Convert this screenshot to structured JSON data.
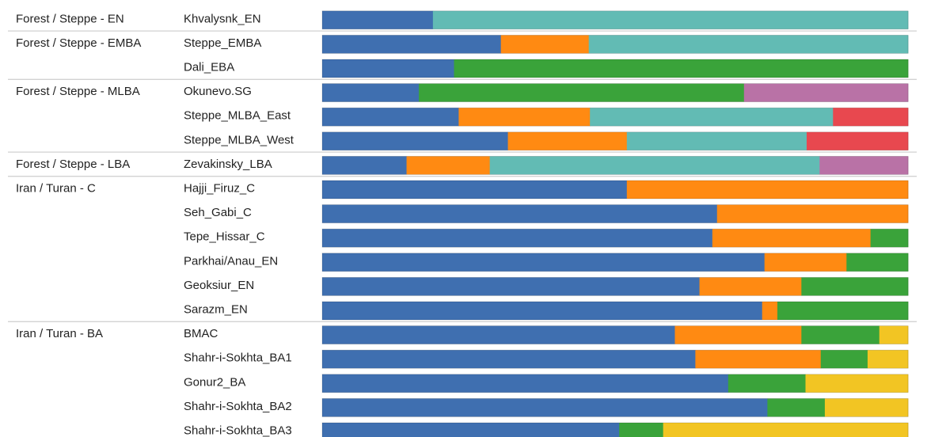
{
  "chart_data": {
    "type": "bar",
    "stacked": true,
    "orientation": "horizontal",
    "normalized": true,
    "xlim": [
      0,
      1
    ],
    "component_colors": [
      "#3f6fb0",
      "#ff8a12",
      "#3aa33a",
      "#f2c523",
      "#b972a6",
      "#e8484f",
      "#62bbb4"
    ],
    "groups": [
      {
        "label": "Forest / Steppe - EN",
        "rows": [
          {
            "name": "Khvalysnk_EN",
            "segments": [
              {
                "color": "#3f6fb0",
                "value": 0.189
              },
              {
                "color": "#62bbb4",
                "value": 0.811
              }
            ]
          }
        ]
      },
      {
        "label": "Forest / Steppe - EMBA",
        "rows": [
          {
            "name": "Steppe_EMBA",
            "segments": [
              {
                "color": "#3f6fb0",
                "value": 0.305
              },
              {
                "color": "#ff8a12",
                "value": 0.15
              },
              {
                "color": "#62bbb4",
                "value": 0.545
              }
            ]
          },
          {
            "name": "Dali_EBA",
            "segments": [
              {
                "color": "#3f6fb0",
                "value": 0.225
              },
              {
                "color": "#3aa33a",
                "value": 0.775
              }
            ]
          }
        ]
      },
      {
        "label": "Forest / Steppe - MLBA",
        "rows": [
          {
            "name": "Okunevo.SG",
            "segments": [
              {
                "color": "#3f6fb0",
                "value": 0.165
              },
              {
                "color": "#3aa33a",
                "value": 0.555
              },
              {
                "color": "#b972a6",
                "value": 0.28
              }
            ]
          },
          {
            "name": "Steppe_MLBA_East",
            "segments": [
              {
                "color": "#3f6fb0",
                "value": 0.233
              },
              {
                "color": "#ff8a12",
                "value": 0.224
              },
              {
                "color": "#62bbb4",
                "value": 0.415
              },
              {
                "color": "#e8484f",
                "value": 0.128
              }
            ]
          },
          {
            "name": "Steppe_MLBA_West",
            "segments": [
              {
                "color": "#3f6fb0",
                "value": 0.317
              },
              {
                "color": "#ff8a12",
                "value": 0.203
              },
              {
                "color": "#62bbb4",
                "value": 0.307
              },
              {
                "color": "#e8484f",
                "value": 0.173
              }
            ]
          }
        ]
      },
      {
        "label": "Forest / Steppe - LBA",
        "rows": [
          {
            "name": "Zevakinsky_LBA",
            "segments": [
              {
                "color": "#3f6fb0",
                "value": 0.144
              },
              {
                "color": "#ff8a12",
                "value": 0.142
              },
              {
                "color": "#62bbb4",
                "value": 0.563
              },
              {
                "color": "#b972a6",
                "value": 0.151
              }
            ]
          }
        ]
      },
      {
        "label": "Iran / Turan - C",
        "rows": [
          {
            "name": "Hajji_Firuz_C",
            "segments": [
              {
                "color": "#3f6fb0",
                "value": 0.52
              },
              {
                "color": "#ff8a12",
                "value": 0.48
              }
            ]
          },
          {
            "name": "Seh_Gabi_C",
            "segments": [
              {
                "color": "#3f6fb0",
                "value": 0.674
              },
              {
                "color": "#ff8a12",
                "value": 0.326
              }
            ]
          },
          {
            "name": "Tepe_Hissar_C",
            "segments": [
              {
                "color": "#3f6fb0",
                "value": 0.666
              },
              {
                "color": "#ff8a12",
                "value": 0.27
              },
              {
                "color": "#3aa33a",
                "value": 0.064
              }
            ]
          },
          {
            "name": "Parkhai/Anau_EN",
            "segments": [
              {
                "color": "#3f6fb0",
                "value": 0.755
              },
              {
                "color": "#ff8a12",
                "value": 0.14
              },
              {
                "color": "#3aa33a",
                "value": 0.105
              }
            ]
          },
          {
            "name": "Geoksiur_EN",
            "segments": [
              {
                "color": "#3f6fb0",
                "value": 0.644
              },
              {
                "color": "#ff8a12",
                "value": 0.174
              },
              {
                "color": "#3aa33a",
                "value": 0.182
              }
            ]
          },
          {
            "name": "Sarazm_EN",
            "segments": [
              {
                "color": "#3f6fb0",
                "value": 0.751
              },
              {
                "color": "#ff8a12",
                "value": 0.026
              },
              {
                "color": "#3aa33a",
                "value": 0.223
              }
            ]
          }
        ]
      },
      {
        "label": "Iran / Turan - BA",
        "rows": [
          {
            "name": "BMAC",
            "segments": [
              {
                "color": "#3f6fb0",
                "value": 0.602
              },
              {
                "color": "#ff8a12",
                "value": 0.216
              },
              {
                "color": "#3aa33a",
                "value": 0.133
              },
              {
                "color": "#f2c523",
                "value": 0.049
              }
            ]
          },
          {
            "name": "Shahr-i-Sokhta_BA1",
            "segments": [
              {
                "color": "#3f6fb0",
                "value": 0.637
              },
              {
                "color": "#ff8a12",
                "value": 0.214
              },
              {
                "color": "#3aa33a",
                "value": 0.08
              },
              {
                "color": "#f2c523",
                "value": 0.069
              }
            ]
          },
          {
            "name": "Gonur2_BA",
            "segments": [
              {
                "color": "#3f6fb0",
                "value": 0.693
              },
              {
                "color": "#3aa33a",
                "value": 0.132
              },
              {
                "color": "#f2c523",
                "value": 0.175
              }
            ]
          },
          {
            "name": "Shahr-i-Sokhta_BA2",
            "segments": [
              {
                "color": "#3f6fb0",
                "value": 0.76
              },
              {
                "color": "#3aa33a",
                "value": 0.098
              },
              {
                "color": "#f2c523",
                "value": 0.142
              }
            ]
          },
          {
            "name": "Shahr-i-Sokhta_BA3",
            "segments": [
              {
                "color": "#3f6fb0",
                "value": 0.507
              },
              {
                "color": "#3aa33a",
                "value": 0.075
              },
              {
                "color": "#f2c523",
                "value": 0.418
              }
            ]
          }
        ]
      }
    ]
  }
}
